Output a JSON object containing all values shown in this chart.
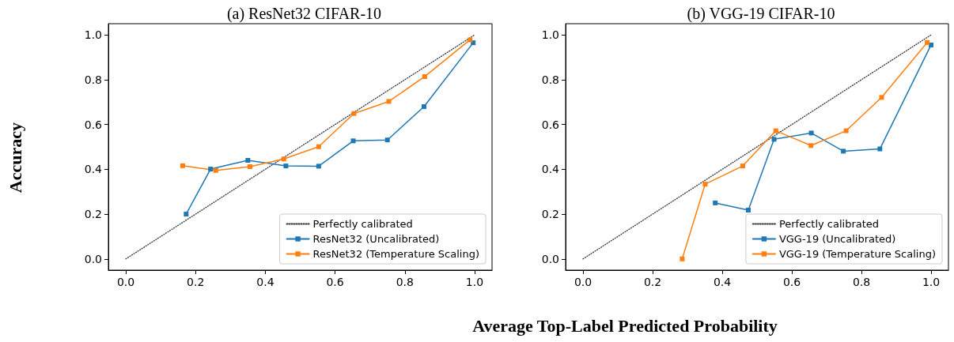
{
  "chart_data": [
    {
      "type": "line",
      "title": "(a) ResNet32 CIFAR-10",
      "ylabel": "Accuracy",
      "xlim": [
        -0.05,
        1.05
      ],
      "ylim": [
        -0.05,
        1.05
      ],
      "xticks": [
        {
          "value": 0,
          "label": "0.0"
        },
        {
          "value": 0.2,
          "label": "0.2"
        },
        {
          "value": 0.4,
          "label": "0.4"
        },
        {
          "value": 0.6,
          "label": "0.6"
        },
        {
          "value": 0.8,
          "label": "0.8"
        },
        {
          "value": 1,
          "label": "1.0"
        }
      ],
      "yticks": [
        {
          "value": 0,
          "label": "0.0"
        },
        {
          "value": 0.2,
          "label": "0.2"
        },
        {
          "value": 0.4,
          "label": "0.4"
        },
        {
          "value": 0.6,
          "label": "0.6"
        },
        {
          "value": 0.8,
          "label": "0.8"
        },
        {
          "value": 1,
          "label": "1.0"
        }
      ],
      "grid": false,
      "legend": "bottom right",
      "series": [
        {
          "name": "Perfectly calibrated",
          "color": "#333333",
          "x": [
            0,
            1
          ],
          "values": [
            0,
            1
          ],
          "line_style": "dotted",
          "marker": "none"
        },
        {
          "name": "ResNet32 (Uncalibrated)",
          "color": "#1f77b4",
          "x": [
            0.173,
            0.243,
            0.35,
            0.459,
            0.553,
            0.652,
            0.75,
            0.855,
            0.996
          ],
          "values": [
            0.2,
            0.401,
            0.44,
            0.415,
            0.414,
            0.527,
            0.531,
            0.68,
            0.965
          ],
          "line_style": "solid",
          "marker": "square"
        },
        {
          "name": "ResNet32 (Temperature Scaling)",
          "color": "#ff7f0e",
          "x": [
            0.163,
            0.258,
            0.356,
            0.453,
            0.553,
            0.654,
            0.754,
            0.857,
            0.987
          ],
          "values": [
            0.416,
            0.395,
            0.412,
            0.446,
            0.501,
            0.649,
            0.703,
            0.814,
            0.978
          ],
          "line_style": "solid",
          "marker": "square"
        }
      ]
    },
    {
      "type": "line",
      "title": "(b) VGG-19 CIFAR-10",
      "xlabel": "Average Top-Label Predicted Probability",
      "xlim": [
        -0.05,
        1.05
      ],
      "ylim": [
        -0.05,
        1.05
      ],
      "xticks": [
        {
          "value": 0,
          "label": "0.0"
        },
        {
          "value": 0.2,
          "label": "0.2"
        },
        {
          "value": 0.4,
          "label": "0.4"
        },
        {
          "value": 0.6,
          "label": "0.6"
        },
        {
          "value": 0.8,
          "label": "0.8"
        },
        {
          "value": 1,
          "label": "1.0"
        }
      ],
      "yticks": [
        {
          "value": 0,
          "label": "0.0"
        },
        {
          "value": 0.2,
          "label": "0.2"
        },
        {
          "value": 0.4,
          "label": "0.4"
        },
        {
          "value": 0.6,
          "label": "0.6"
        },
        {
          "value": 0.8,
          "label": "0.8"
        },
        {
          "value": 1,
          "label": "1.0"
        }
      ],
      "grid": false,
      "legend": "bottom right",
      "series": [
        {
          "name": "Perfectly calibrated",
          "color": "#333333",
          "x": [
            0,
            1
          ],
          "values": [
            0,
            1
          ],
          "line_style": "dotted",
          "marker": "none"
        },
        {
          "name": "VGG-19 (Uncalibrated)",
          "color": "#1f77b4",
          "x": [
            0.38,
            0.475,
            0.549,
            0.656,
            0.748,
            0.853,
            1.0
          ],
          "values": [
            0.25,
            0.218,
            0.534,
            0.562,
            0.481,
            0.491,
            0.955
          ],
          "line_style": "solid",
          "marker": "square"
        },
        {
          "name": "VGG-19 (Temperature Scaling)",
          "color": "#ff7f0e",
          "x": [
            0.285,
            0.351,
            0.459,
            0.554,
            0.655,
            0.756,
            0.858,
            0.989
          ],
          "values": [
            0.0,
            0.334,
            0.415,
            0.572,
            0.506,
            0.572,
            0.721,
            0.966
          ],
          "line_style": "solid",
          "marker": "square"
        }
      ]
    }
  ]
}
